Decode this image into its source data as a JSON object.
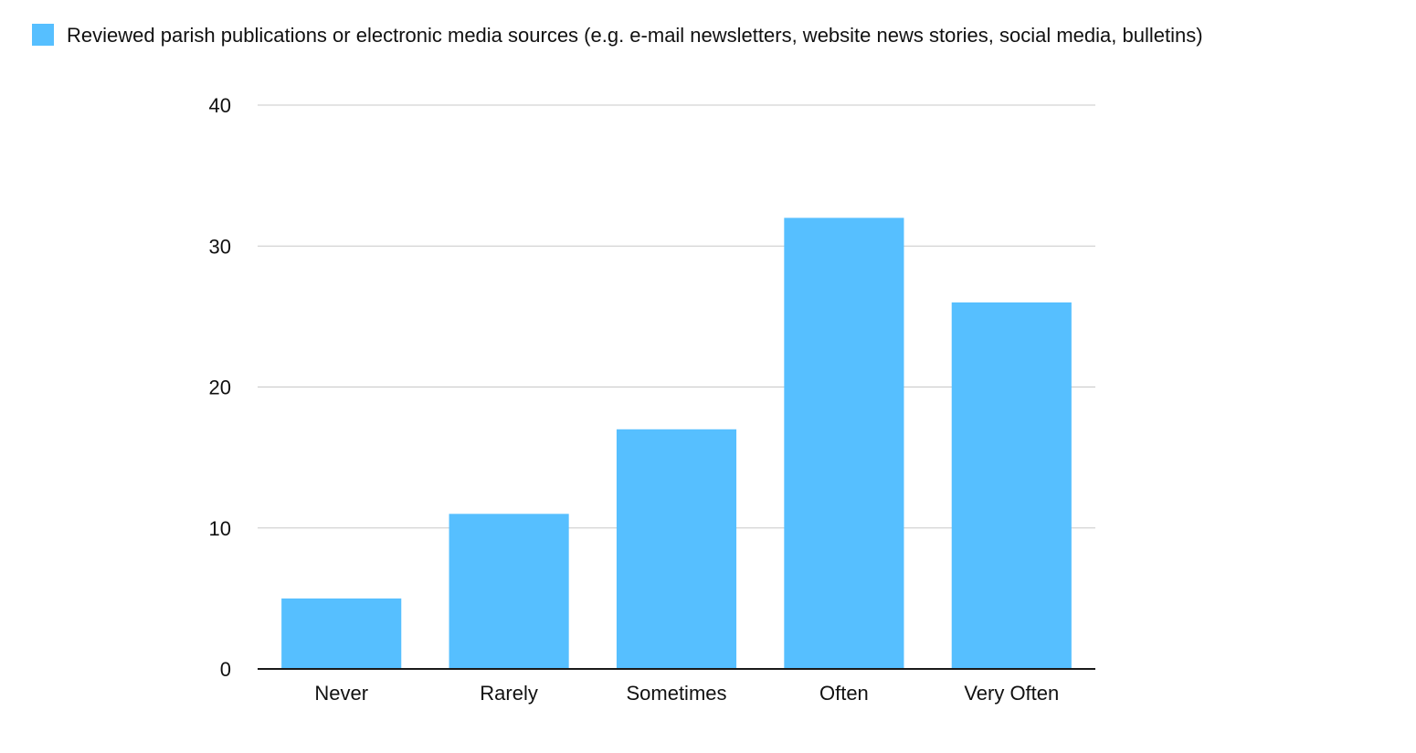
{
  "chart_data": {
    "type": "bar",
    "title": "",
    "xlabel": "",
    "ylabel": "",
    "categories": [
      "Never",
      "Rarely",
      "Sometimes",
      "Often",
      "Very Often"
    ],
    "series": [
      {
        "name": "Reviewed parish publications or electronic media sources (e.g. e-mail newsletters, website news stories, social media, bulletins)",
        "values": [
          5,
          11,
          17,
          32,
          26
        ],
        "color": "#56BFFF"
      }
    ],
    "ylim": [
      0,
      40
    ],
    "yticks": [
      0,
      10,
      20,
      30,
      40
    ],
    "grid": true,
    "legend_position": "top-left"
  }
}
